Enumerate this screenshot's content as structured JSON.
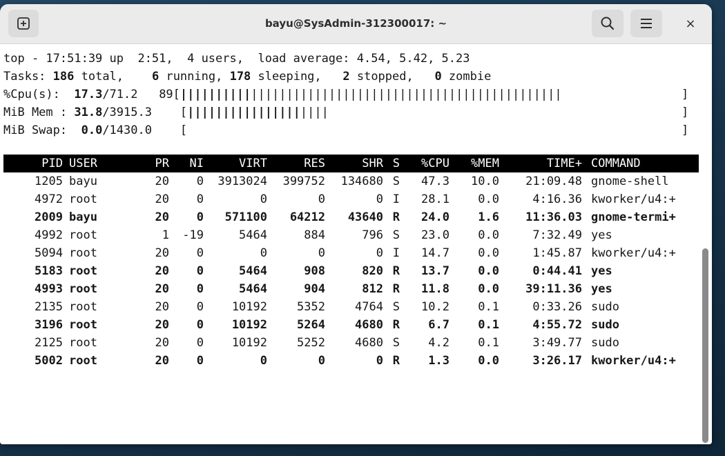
{
  "window": {
    "title": "bayu@SysAdmin-312300017: ~",
    "icons": {
      "new_tab": "new-tab-icon",
      "search": "search-icon",
      "menu": "hamburger-menu-icon",
      "close": "close-icon"
    },
    "close_glyph": "×"
  },
  "summary": {
    "line1": "top - 17:51:39 up  2:51,  4 users,  load average: 4.54, 5.42, 5.23",
    "tasks": {
      "prefix": "Tasks: ",
      "total": "186",
      "total_label": " total,    ",
      "running": "6",
      "running_label": " running, ",
      "sleeping": "178",
      "sleeping_label": " sleeping,   ",
      "stopped": "2",
      "stopped_label": " stopped,   ",
      "zombie": "0",
      "zombie_label": " zombie"
    },
    "cpu": {
      "prefix": "%Cpu(s): ",
      "user": " 17.3",
      "rest": "/71.2   89[",
      "bar_bold": "||||||||||",
      "bar_thin": "||||||||||||||||||||||||||||||||||||||||||||",
      "end": "]"
    },
    "mem": {
      "prefix": "MiB Mem : ",
      "used": "31.8",
      "rest": "/3915.3    [",
      "bar_bold": "||||||||||||||||",
      "bar_thin": "||||",
      "end": "]"
    },
    "swap": {
      "prefix": "MiB Swap: ",
      "used": " 0.0",
      "rest": "/1430.0    [",
      "end": "]"
    }
  },
  "table": {
    "columns": [
      "PID",
      "USER",
      "PR",
      "NI",
      "VIRT",
      "RES",
      "SHR",
      "S",
      "%CPU",
      "%MEM",
      "TIME+",
      "COMMAND"
    ],
    "rows": [
      {
        "pid": "1205",
        "user": "bayu",
        "pr": "20",
        "ni": "0",
        "virt": "3913024",
        "res": "399752",
        "shr": "134680",
        "s": "S",
        "cpu": "47.3",
        "mem": "10.0",
        "time": "21:09.48",
        "command": "gnome-shell",
        "bold": false
      },
      {
        "pid": "4972",
        "user": "root",
        "pr": "20",
        "ni": "0",
        "virt": "0",
        "res": "0",
        "shr": "0",
        "s": "I",
        "cpu": "28.1",
        "mem": "0.0",
        "time": "4:16.36",
        "command": "kworker/u4:+",
        "bold": false
      },
      {
        "pid": "2009",
        "user": "bayu",
        "pr": "20",
        "ni": "0",
        "virt": "571100",
        "res": "64212",
        "shr": "43640",
        "s": "R",
        "cpu": "24.0",
        "mem": "1.6",
        "time": "11:36.03",
        "command": "gnome-termi+",
        "bold": true
      },
      {
        "pid": "4992",
        "user": "root",
        "pr": "1",
        "ni": "-19",
        "virt": "5464",
        "res": "884",
        "shr": "796",
        "s": "S",
        "cpu": "23.0",
        "mem": "0.0",
        "time": "7:32.49",
        "command": "yes",
        "bold": false
      },
      {
        "pid": "5094",
        "user": "root",
        "pr": "20",
        "ni": "0",
        "virt": "0",
        "res": "0",
        "shr": "0",
        "s": "I",
        "cpu": "14.7",
        "mem": "0.0",
        "time": "1:45.87",
        "command": "kworker/u4:+",
        "bold": false
      },
      {
        "pid": "5183",
        "user": "root",
        "pr": "20",
        "ni": "0",
        "virt": "5464",
        "res": "908",
        "shr": "820",
        "s": "R",
        "cpu": "13.7",
        "mem": "0.0",
        "time": "0:44.41",
        "command": "yes",
        "bold": true
      },
      {
        "pid": "4993",
        "user": "root",
        "pr": "20",
        "ni": "0",
        "virt": "5464",
        "res": "904",
        "shr": "812",
        "s": "R",
        "cpu": "11.8",
        "mem": "0.0",
        "time": "39:11.36",
        "command": "yes",
        "bold": true
      },
      {
        "pid": "2135",
        "user": "root",
        "pr": "20",
        "ni": "0",
        "virt": "10192",
        "res": "5352",
        "shr": "4764",
        "s": "S",
        "cpu": "10.2",
        "mem": "0.1",
        "time": "0:33.26",
        "command": "sudo",
        "bold": false
      },
      {
        "pid": "3196",
        "user": "root",
        "pr": "20",
        "ni": "0",
        "virt": "10192",
        "res": "5264",
        "shr": "4680",
        "s": "R",
        "cpu": "6.7",
        "mem": "0.1",
        "time": "4:55.72",
        "command": "sudo",
        "bold": true
      },
      {
        "pid": "2125",
        "user": "root",
        "pr": "20",
        "ni": "0",
        "virt": "10192",
        "res": "5252",
        "shr": "4680",
        "s": "S",
        "cpu": "4.2",
        "mem": "0.1",
        "time": "3:49.77",
        "command": "sudo",
        "bold": false
      },
      {
        "pid": "5002",
        "user": "root",
        "pr": "20",
        "ni": "0",
        "virt": "0",
        "res": "0",
        "shr": "0",
        "s": "R",
        "cpu": "1.3",
        "mem": "0.0",
        "time": "3:26.17",
        "command": "kworker/u4:+",
        "bold": true
      }
    ]
  },
  "colors": {
    "header_bg": "#000000",
    "header_fg": "#ffffff",
    "text": "#171717",
    "titlebar": "#ebebeb"
  }
}
